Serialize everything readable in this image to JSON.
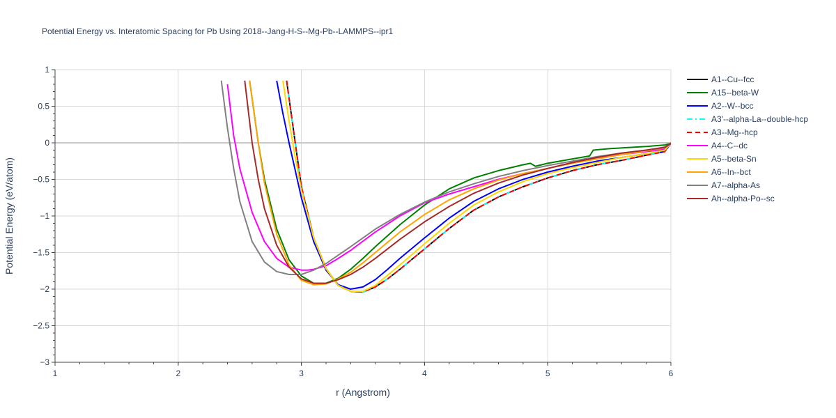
{
  "chart_data": {
    "type": "line",
    "title": "Potential Energy vs. Interatomic Spacing for Pb Using 2018--Jang-H-S--Mg-Pb--LAMMPS--ipr1",
    "xlabel": "r (Angstrom)",
    "ylabel": "Potential Energy (eV/atom)",
    "xlim": [
      1,
      6
    ],
    "ylim": [
      -3,
      1
    ],
    "xticks": [
      1,
      2,
      3,
      4,
      5,
      6
    ],
    "xtick_labels": [
      "1",
      "2",
      "3",
      "4",
      "5",
      "6"
    ],
    "yticks": [
      1,
      0.5,
      0,
      -0.5,
      -1,
      -1.5,
      -2,
      -2.5,
      -3
    ],
    "ytick_labels": [
      "1",
      "0.5",
      "0",
      "−0.5",
      "−1",
      "−1.5",
      "−2",
      "−2.5",
      "−3"
    ],
    "grid": true,
    "legend_position": "right",
    "series": [
      {
        "name": "A1--Cu--fcc",
        "color": "#000000",
        "dash": "solid",
        "x": [
          2.88,
          2.95,
          3.0,
          3.1,
          3.2,
          3.3,
          3.4,
          3.5,
          3.6,
          3.7,
          3.8,
          4.0,
          4.2,
          4.4,
          4.6,
          4.8,
          5.0,
          5.2,
          5.4,
          5.6,
          5.8,
          5.95,
          6.0
        ],
        "y": [
          0.85,
          0.0,
          -0.6,
          -1.3,
          -1.72,
          -1.95,
          -2.03,
          -2.04,
          -1.97,
          -1.86,
          -1.73,
          -1.45,
          -1.17,
          -0.92,
          -0.74,
          -0.6,
          -0.48,
          -0.38,
          -0.3,
          -0.24,
          -0.17,
          -0.12,
          0.0
        ]
      },
      {
        "name": "A15--beta-W",
        "color": "#008000",
        "dash": "solid",
        "x": [
          2.58,
          2.65,
          2.7,
          2.8,
          2.9,
          3.0,
          3.1,
          3.2,
          3.3,
          3.4,
          3.5,
          3.6,
          3.8,
          4.0,
          4.2,
          4.4,
          4.6,
          4.8,
          4.86,
          4.9,
          5.0,
          5.2,
          5.34,
          5.37,
          5.5,
          5.8,
          5.95,
          6.0
        ],
        "y": [
          0.85,
          0.0,
          -0.5,
          -1.18,
          -1.6,
          -1.82,
          -1.92,
          -1.92,
          -1.85,
          -1.73,
          -1.58,
          -1.42,
          -1.12,
          -0.85,
          -0.63,
          -0.48,
          -0.38,
          -0.3,
          -0.28,
          -0.32,
          -0.28,
          -0.22,
          -0.18,
          -0.1,
          -0.08,
          -0.05,
          -0.03,
          -0.01
        ]
      },
      {
        "name": "A2--W--bcc",
        "color": "#0000ff",
        "dash": "solid",
        "x": [
          2.8,
          2.85,
          2.9,
          3.0,
          3.1,
          3.2,
          3.3,
          3.4,
          3.5,
          3.6,
          3.7,
          3.8,
          4.0,
          4.2,
          4.4,
          4.6,
          4.8,
          5.0,
          5.2,
          5.4,
          5.6,
          5.8,
          5.95,
          6.0
        ],
        "y": [
          0.85,
          0.4,
          0.0,
          -0.75,
          -1.35,
          -1.74,
          -1.94,
          -2.0,
          -1.97,
          -1.87,
          -1.73,
          -1.58,
          -1.3,
          -1.03,
          -0.8,
          -0.63,
          -0.5,
          -0.4,
          -0.32,
          -0.25,
          -0.2,
          -0.15,
          -0.12,
          -0.01
        ]
      },
      {
        "name": "A3'--alpha-La--double-hcp",
        "color": "#00ffff",
        "dash": "dashdot",
        "x": [
          2.88,
          2.95,
          3.0,
          3.1,
          3.2,
          3.3,
          3.4,
          3.5,
          3.6,
          3.7,
          3.8,
          4.0,
          4.2,
          4.4,
          4.6,
          4.8,
          5.0,
          5.2,
          5.4,
          5.6,
          5.8,
          5.95,
          6.0
        ],
        "y": [
          0.85,
          0.0,
          -0.6,
          -1.3,
          -1.72,
          -1.95,
          -2.03,
          -2.04,
          -1.97,
          -1.86,
          -1.73,
          -1.45,
          -1.17,
          -0.92,
          -0.74,
          -0.6,
          -0.48,
          -0.38,
          -0.3,
          -0.24,
          -0.17,
          -0.12,
          0.0
        ]
      },
      {
        "name": "A3--Mg--hcp",
        "color": "#ff0000",
        "dash": "dash",
        "x": [
          2.88,
          2.95,
          3.0,
          3.1,
          3.2,
          3.3,
          3.4,
          3.5,
          3.6,
          3.7,
          3.8,
          4.0,
          4.2,
          4.4,
          4.6,
          4.8,
          5.0,
          5.2,
          5.4,
          5.6,
          5.8,
          5.95,
          6.0
        ],
        "y": [
          0.85,
          0.0,
          -0.6,
          -1.3,
          -1.72,
          -1.95,
          -2.03,
          -2.04,
          -1.97,
          -1.86,
          -1.73,
          -1.45,
          -1.17,
          -0.92,
          -0.74,
          -0.6,
          -0.48,
          -0.38,
          -0.3,
          -0.24,
          -0.17,
          -0.12,
          0.0
        ]
      },
      {
        "name": "A4--C--dc",
        "color": "#ff00ff",
        "dash": "solid",
        "x": [
          2.4,
          2.45,
          2.5,
          2.6,
          2.7,
          2.8,
          2.9,
          3.0,
          3.05,
          3.1,
          3.2,
          3.3,
          3.4,
          3.6,
          3.8,
          4.0,
          4.2,
          4.4,
          4.6,
          4.8,
          5.0,
          5.2,
          5.4,
          5.6,
          5.8,
          5.95,
          6.0
        ],
        "y": [
          0.8,
          0.1,
          -0.35,
          -0.95,
          -1.35,
          -1.58,
          -1.7,
          -1.74,
          -1.74,
          -1.73,
          -1.68,
          -1.58,
          -1.47,
          -1.22,
          -1.0,
          -0.82,
          -0.7,
          -0.6,
          -0.5,
          -0.42,
          -0.35,
          -0.27,
          -0.21,
          -0.16,
          -0.12,
          -0.09,
          -0.01
        ]
      },
      {
        "name": "A5--beta-Sn",
        "color": "#ffd700",
        "dash": "solid",
        "x": [
          2.85,
          2.9,
          2.95,
          3.0,
          3.1,
          3.2,
          3.3,
          3.4,
          3.5,
          3.6,
          3.8,
          4.0,
          4.2,
          4.4,
          4.6,
          4.8,
          5.0,
          5.2,
          5.4,
          5.6,
          5.8,
          5.95,
          6.0
        ],
        "y": [
          0.85,
          0.3,
          -0.2,
          -0.65,
          -1.3,
          -1.72,
          -1.95,
          -2.03,
          -2.03,
          -1.95,
          -1.67,
          -1.38,
          -1.1,
          -0.85,
          -0.67,
          -0.53,
          -0.42,
          -0.34,
          -0.27,
          -0.2,
          -0.15,
          -0.1,
          -0.01
        ]
      },
      {
        "name": "A6--In--bct",
        "color": "#ffa500",
        "dash": "solid",
        "x": [
          2.58,
          2.65,
          2.7,
          2.8,
          2.9,
          3.0,
          3.1,
          3.2,
          3.3,
          3.4,
          3.5,
          3.6,
          3.8,
          4.0,
          4.2,
          4.4,
          4.6,
          4.8,
          5.0,
          5.2,
          5.4,
          5.6,
          5.8,
          5.95,
          6.0
        ],
        "y": [
          0.85,
          0.0,
          -0.55,
          -1.25,
          -1.67,
          -1.88,
          -1.94,
          -1.93,
          -1.86,
          -1.77,
          -1.64,
          -1.5,
          -1.22,
          -0.98,
          -0.78,
          -0.63,
          -0.51,
          -0.42,
          -0.35,
          -0.28,
          -0.22,
          -0.16,
          -0.11,
          -0.07,
          -0.01
        ]
      },
      {
        "name": "A7--alpha-As",
        "color": "#808080",
        "dash": "solid",
        "x": [
          2.35,
          2.4,
          2.45,
          2.5,
          2.6,
          2.7,
          2.8,
          2.9,
          3.0,
          3.1,
          3.2,
          3.4,
          3.6,
          3.8,
          4.0,
          4.2,
          4.4,
          4.6,
          4.8,
          5.0,
          5.2,
          5.4,
          5.6,
          5.8,
          5.95,
          6.0
        ],
        "y": [
          0.85,
          0.2,
          -0.35,
          -0.8,
          -1.35,
          -1.63,
          -1.76,
          -1.8,
          -1.8,
          -1.74,
          -1.65,
          -1.42,
          -1.18,
          -0.98,
          -0.81,
          -0.67,
          -0.56,
          -0.46,
          -0.38,
          -0.31,
          -0.25,
          -0.19,
          -0.14,
          -0.1,
          -0.07,
          -0.01
        ]
      },
      {
        "name": "Ah--alpha-Po--sc",
        "color": "#a52a2a",
        "dash": "solid",
        "x": [
          2.54,
          2.6,
          2.65,
          2.7,
          2.8,
          2.9,
          3.0,
          3.1,
          3.2,
          3.3,
          3.4,
          3.5,
          3.6,
          3.8,
          4.0,
          4.2,
          4.4,
          4.6,
          4.8,
          5.0,
          5.2,
          5.4,
          5.6,
          5.8,
          5.95,
          6.0
        ],
        "y": [
          0.85,
          0.0,
          -0.5,
          -0.9,
          -1.4,
          -1.7,
          -1.86,
          -1.92,
          -1.92,
          -1.87,
          -1.8,
          -1.7,
          -1.58,
          -1.32,
          -1.08,
          -0.87,
          -0.69,
          -0.55,
          -0.44,
          -0.35,
          -0.27,
          -0.2,
          -0.14,
          -0.1,
          -0.06,
          -0.01
        ]
      }
    ]
  }
}
